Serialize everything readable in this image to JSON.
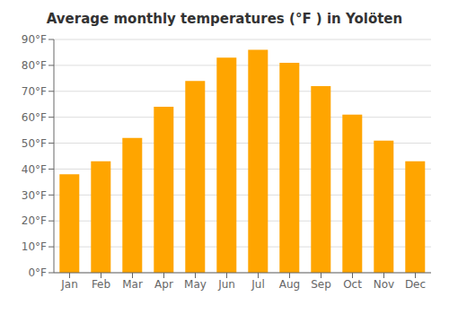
{
  "chart_data": {
    "type": "bar",
    "title": "Average monthly temperatures (°F ) in Yolöten",
    "categories": [
      "Jan",
      "Feb",
      "Mar",
      "Apr",
      "May",
      "Jun",
      "Jul",
      "Aug",
      "Sep",
      "Oct",
      "Nov",
      "Dec"
    ],
    "values": [
      38,
      43,
      52,
      64,
      74,
      83,
      86,
      81,
      72,
      61,
      51,
      43
    ],
    "color": "#FFA500",
    "ylim": [
      0,
      90
    ],
    "yticks": [
      {
        "value": 0,
        "label": "0°F"
      },
      {
        "value": 10,
        "label": "10°F"
      },
      {
        "value": 20,
        "label": "20°F"
      },
      {
        "value": 30,
        "label": "30°F"
      },
      {
        "value": 40,
        "label": "40°F"
      },
      {
        "value": 50,
        "label": "50°F"
      },
      {
        "value": 60,
        "label": "60°F"
      },
      {
        "value": 70,
        "label": "70°F"
      },
      {
        "value": 80,
        "label": "80°F"
      },
      {
        "value": 90,
        "label": "90°F"
      }
    ],
    "grid": true
  }
}
